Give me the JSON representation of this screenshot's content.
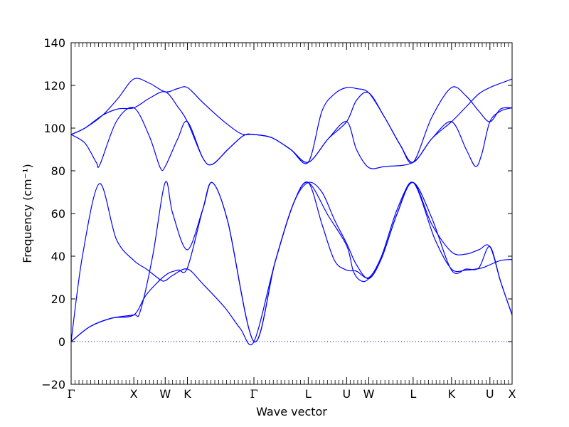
{
  "chart_data": {
    "type": "line",
    "title": "",
    "xlabel": "Wave vector",
    "ylabel": "Frequency (cm⁻¹)",
    "ylim": [
      -20,
      140
    ],
    "yticks": [
      -20,
      0,
      20,
      40,
      60,
      80,
      100,
      120,
      140
    ],
    "grid": false,
    "line_color": "#0000ff",
    "zero_line": {
      "y": 0,
      "style": "dotted",
      "color": "#0000ff"
    },
    "kpoints": [
      {
        "label": "Γ",
        "x": 0.0
      },
      {
        "label": "X",
        "x": 1.0
      },
      {
        "label": "W",
        "x": 1.5
      },
      {
        "label": "K",
        "x": 1.854
      },
      {
        "label": "Γ",
        "x": 2.915
      },
      {
        "label": "L",
        "x": 3.781
      },
      {
        "label": "U",
        "x": 4.393
      },
      {
        "label": "W",
        "x": 4.747
      },
      {
        "label": "L",
        "x": 5.454
      },
      {
        "label": "K",
        "x": 6.066
      },
      {
        "label": "U",
        "x": 6.678
      },
      {
        "label": "X",
        "x": 7.032
      }
    ],
    "series": [
      {
        "values": [
          [
            0.0,
            0
          ],
          [
            0.18,
            40
          ],
          [
            0.45,
            74
          ],
          [
            0.72,
            48
          ],
          [
            1.0,
            38
          ],
          [
            1.2,
            34
          ],
          [
            1.42,
            29
          ],
          [
            1.5,
            28.5
          ],
          [
            1.62,
            31
          ],
          [
            1.854,
            34
          ],
          [
            2.1,
            27
          ],
          [
            2.45,
            16
          ],
          [
            2.7,
            6
          ],
          [
            2.915,
            0
          ],
          [
            3.25,
            37
          ],
          [
            3.55,
            65
          ],
          [
            3.781,
            74.5
          ],
          [
            4.0,
            70
          ],
          [
            4.2,
            57
          ],
          [
            4.393,
            46
          ],
          [
            4.55,
            36
          ],
          [
            4.747,
            29.5
          ],
          [
            4.95,
            39
          ],
          [
            5.2,
            60
          ],
          [
            5.454,
            74.5
          ],
          [
            5.75,
            55
          ],
          [
            6.066,
            42
          ],
          [
            6.3,
            41
          ],
          [
            6.5,
            43
          ],
          [
            6.678,
            44.5
          ],
          [
            6.85,
            28
          ],
          [
            7.032,
            12.5
          ]
        ]
      },
      {
        "values": [
          [
            0.0,
            0
          ],
          [
            0.3,
            7
          ],
          [
            0.65,
            11
          ],
          [
            1.0,
            12.5
          ],
          [
            1.1,
            14
          ],
          [
            1.3,
            40
          ],
          [
            1.5,
            74.5
          ],
          [
            1.62,
            60
          ],
          [
            1.854,
            43
          ],
          [
            2.1,
            62
          ],
          [
            2.25,
            74.5
          ],
          [
            2.5,
            56
          ],
          [
            2.915,
            0
          ],
          [
            3.25,
            37
          ],
          [
            3.55,
            65
          ],
          [
            3.781,
            74.5
          ],
          [
            4.1,
            59
          ],
          [
            4.393,
            45
          ],
          [
            4.5,
            33
          ],
          [
            4.62,
            28.5
          ],
          [
            4.747,
            29.5
          ],
          [
            4.95,
            39
          ],
          [
            5.2,
            60
          ],
          [
            5.454,
            74.5
          ],
          [
            5.8,
            48
          ],
          [
            6.066,
            34
          ],
          [
            6.3,
            33.5
          ],
          [
            6.55,
            34.5
          ],
          [
            6.678,
            36
          ],
          [
            6.85,
            38
          ],
          [
            7.032,
            38.5
          ]
        ]
      },
      {
        "values": [
          [
            0.0,
            0
          ],
          [
            0.3,
            7
          ],
          [
            0.65,
            11
          ],
          [
            1.0,
            12.5
          ],
          [
            1.2,
            22
          ],
          [
            1.5,
            31
          ],
          [
            1.7,
            33.5
          ],
          [
            1.854,
            34.5
          ],
          [
            2.1,
            62
          ],
          [
            2.25,
            74.5
          ],
          [
            2.5,
            56
          ],
          [
            2.915,
            0
          ],
          [
            3.25,
            37
          ],
          [
            3.55,
            65
          ],
          [
            3.781,
            74.5
          ],
          [
            4.0,
            55
          ],
          [
            4.2,
            38
          ],
          [
            4.393,
            33.5
          ],
          [
            4.55,
            33
          ],
          [
            4.747,
            30
          ],
          [
            4.95,
            40
          ],
          [
            5.2,
            62
          ],
          [
            5.454,
            74.5
          ],
          [
            5.75,
            58
          ],
          [
            6.066,
            33.5
          ],
          [
            6.3,
            34
          ],
          [
            6.5,
            34.5
          ],
          [
            6.678,
            44.5
          ],
          [
            6.85,
            28
          ],
          [
            7.032,
            12.5
          ]
        ]
      },
      {
        "values": [
          [
            0.0,
            97
          ],
          [
            0.22,
            93
          ],
          [
            0.4,
            84
          ],
          [
            0.46,
            83
          ],
          [
            0.72,
            103
          ],
          [
            1.0,
            109.5
          ],
          [
            1.25,
            96
          ],
          [
            1.42,
            81.5
          ],
          [
            1.5,
            82
          ],
          [
            1.7,
            95
          ],
          [
            1.854,
            103
          ],
          [
            2.1,
            86
          ],
          [
            2.25,
            83
          ],
          [
            2.5,
            90
          ],
          [
            2.75,
            96.5
          ],
          [
            2.915,
            97
          ],
          [
            3.2,
            95.5
          ],
          [
            3.5,
            90
          ],
          [
            3.781,
            84
          ],
          [
            4.1,
            95
          ],
          [
            4.393,
            103
          ],
          [
            4.55,
            90
          ],
          [
            4.747,
            81.5
          ],
          [
            5.0,
            82
          ],
          [
            5.454,
            84
          ],
          [
            5.75,
            95
          ],
          [
            6.066,
            103
          ],
          [
            6.3,
            90
          ],
          [
            6.45,
            82
          ],
          [
            6.55,
            88
          ],
          [
            6.678,
            103
          ],
          [
            6.85,
            108
          ],
          [
            7.032,
            109.5
          ]
        ]
      },
      {
        "values": [
          [
            0.0,
            97
          ],
          [
            0.22,
            100
          ],
          [
            0.5,
            106
          ],
          [
            0.75,
            109
          ],
          [
            1.0,
            109.5
          ],
          [
            1.25,
            114
          ],
          [
            1.5,
            117
          ],
          [
            1.7,
            110
          ],
          [
            1.854,
            103
          ],
          [
            2.1,
            86
          ],
          [
            2.25,
            83
          ],
          [
            2.5,
            90
          ],
          [
            2.75,
            96.5
          ],
          [
            2.915,
            97
          ],
          [
            3.2,
            95.5
          ],
          [
            3.5,
            90
          ],
          [
            3.781,
            84
          ],
          [
            4.1,
            95
          ],
          [
            4.393,
            103
          ],
          [
            4.55,
            113
          ],
          [
            4.747,
            116.5
          ],
          [
            5.0,
            105
          ],
          [
            5.25,
            92
          ],
          [
            5.454,
            84
          ],
          [
            5.75,
            95
          ],
          [
            6.066,
            103
          ],
          [
            6.3,
            110
          ],
          [
            6.5,
            116
          ],
          [
            6.678,
            119
          ],
          [
            6.85,
            121
          ],
          [
            7.032,
            123
          ]
        ]
      },
      {
        "values": [
          [
            0.0,
            97
          ],
          [
            0.22,
            100
          ],
          [
            0.5,
            106
          ],
          [
            0.75,
            114
          ],
          [
            1.0,
            123
          ],
          [
            1.25,
            121
          ],
          [
            1.5,
            117
          ],
          [
            1.7,
            118.5
          ],
          [
            1.854,
            119
          ],
          [
            2.1,
            112
          ],
          [
            2.4,
            104
          ],
          [
            2.7,
            97.5
          ],
          [
            2.915,
            97
          ],
          [
            3.2,
            95.5
          ],
          [
            3.5,
            90
          ],
          [
            3.781,
            84
          ],
          [
            4.0,
            108
          ],
          [
            4.2,
            116
          ],
          [
            4.393,
            119
          ],
          [
            4.55,
            118.5
          ],
          [
            4.747,
            116.5
          ],
          [
            5.0,
            105
          ],
          [
            5.25,
            92
          ],
          [
            5.454,
            84
          ],
          [
            5.75,
            105
          ],
          [
            6.066,
            119
          ],
          [
            6.3,
            115
          ],
          [
            6.5,
            108
          ],
          [
            6.678,
            103
          ],
          [
            6.85,
            109
          ],
          [
            7.032,
            109.5
          ]
        ]
      }
    ]
  }
}
